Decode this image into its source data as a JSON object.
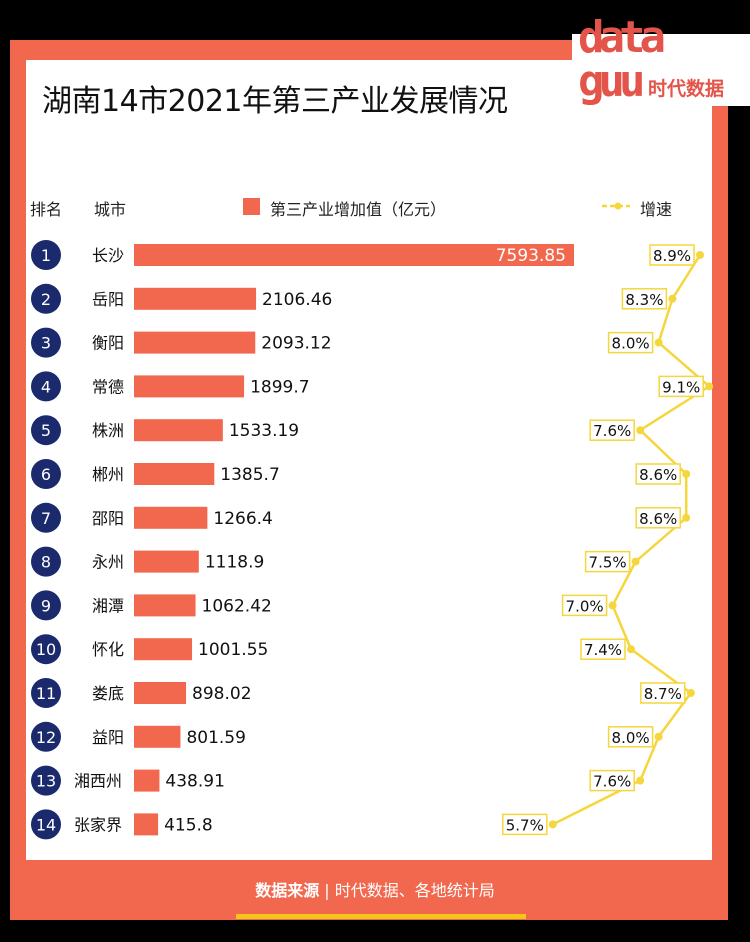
{
  "title": "湖南14市2021年第三产业发展情况",
  "logo": {
    "line1": "data",
    "line2": "guu",
    "brand": "时代数据"
  },
  "headers": {
    "rank": "排名",
    "city": "城市",
    "legend_bar": "第三产业增加值（亿元）",
    "legend_line": "增速"
  },
  "colors": {
    "bar": "#f2684e",
    "rank_circle": "#1a2a6c",
    "line": "#f5d63d",
    "frame": "#f2684e"
  },
  "chart_data": {
    "type": "bar",
    "categories": [
      "长沙",
      "岳阳",
      "衡阳",
      "常德",
      "株洲",
      "郴州",
      "邵阳",
      "永州",
      "湘潭",
      "怀化",
      "娄底",
      "益阳",
      "湘西州",
      "张家界"
    ],
    "ranks": [
      "1",
      "2",
      "3",
      "4",
      "5",
      "6",
      "7",
      "8",
      "9",
      "10",
      "11",
      "12",
      "13",
      "14"
    ],
    "series": [
      {
        "name": "第三产业增加值（亿元）",
        "values": [
          7593.85,
          2106.46,
          2093.12,
          1899.7,
          1533.19,
          1385.7,
          1266.4,
          1118.9,
          1062.42,
          1001.55,
          898.02,
          801.59,
          438.91,
          415.8
        ]
      },
      {
        "name": "增速",
        "values": [
          8.9,
          8.3,
          8.0,
          9.1,
          7.6,
          8.6,
          8.6,
          7.5,
          7.0,
          7.4,
          8.7,
          8.0,
          7.6,
          5.7
        ],
        "labels": [
          "8.9%",
          "8.3%",
          "8.0%",
          "9.1%",
          "7.6%",
          "8.6%",
          "8.6%",
          "7.5%",
          "7.0%",
          "7.4%",
          "8.7%",
          "8.0%",
          "7.6%",
          "5.7%"
        ]
      }
    ],
    "value_labels": [
      "7593.85",
      "2106.46",
      "2093.12",
      "1899.7",
      "1533.19",
      "1385.7",
      "1266.4",
      "1118.9",
      "1062.42",
      "1001.55",
      "898.02",
      "801.59",
      "438.91",
      "415.8"
    ]
  },
  "footer": {
    "label": "数据来源",
    "separator": "|",
    "source": "时代数据、各地统计局"
  }
}
